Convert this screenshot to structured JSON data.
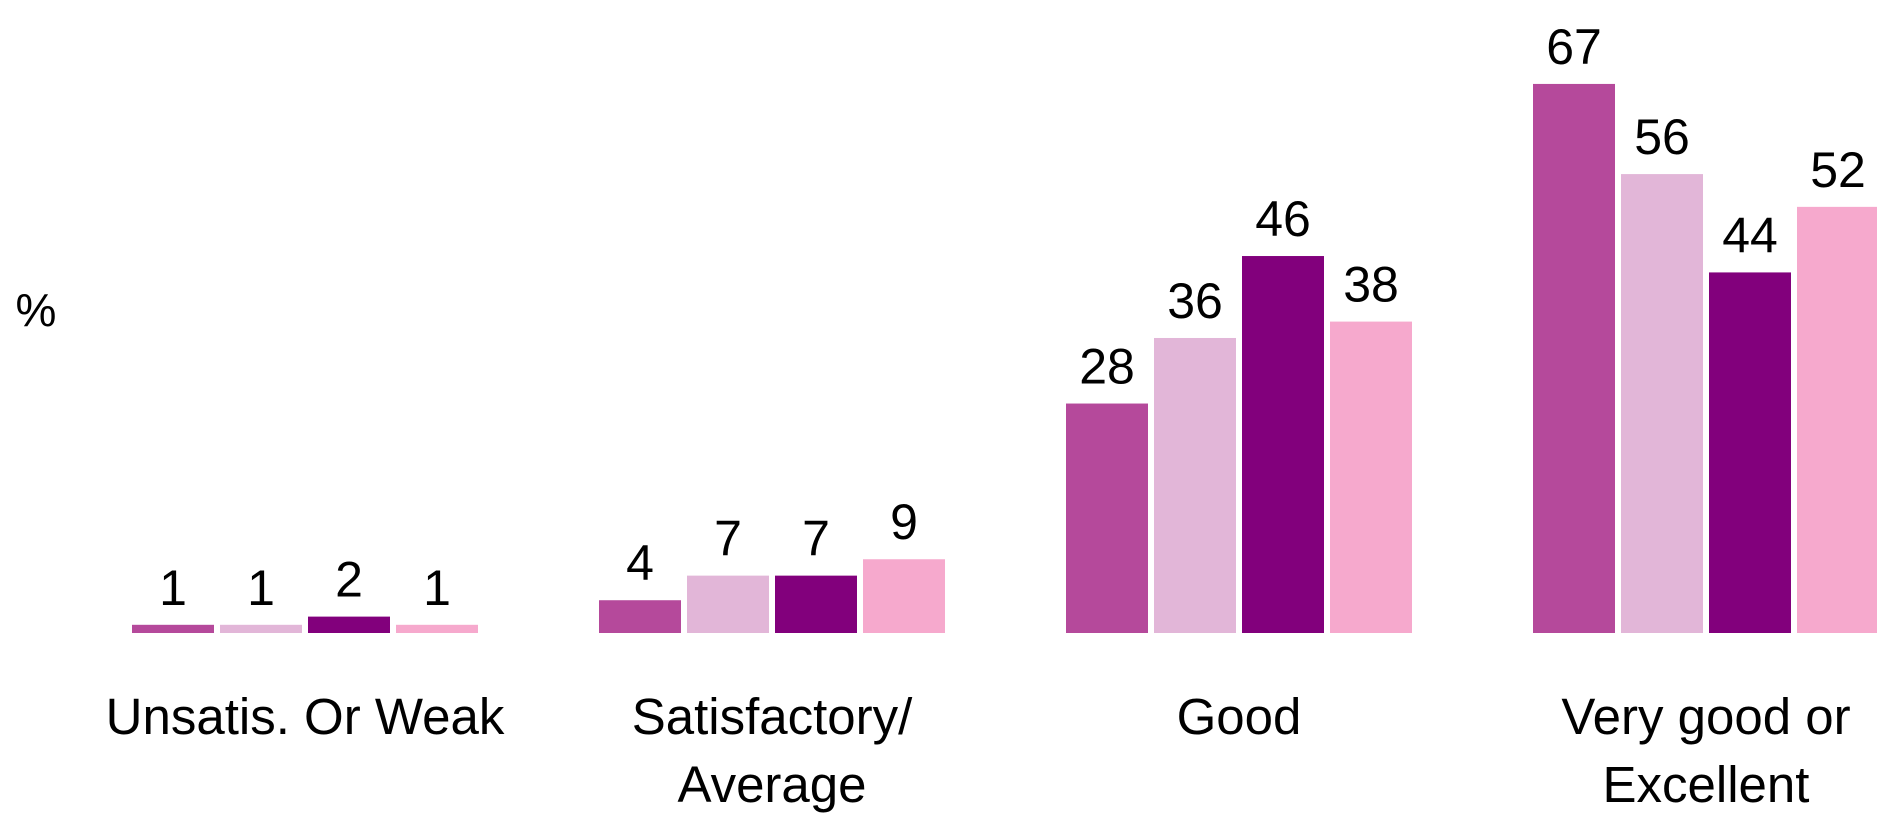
{
  "chart_data": {
    "type": "bar",
    "ylabel": "%",
    "ylim": [
      0,
      70
    ],
    "grid": false,
    "categories": [
      "Unsatis. Or Weak",
      "Satisfactory/ Average",
      "Good",
      "Very good or Excellent"
    ],
    "category_lines": [
      [
        "Unsatis. Or Weak"
      ],
      [
        "Satisfactory/",
        "Average"
      ],
      [
        "Good"
      ],
      [
        "Very good or",
        "Excellent"
      ]
    ],
    "series": [
      {
        "color": "#b5499b",
        "values": [
          1,
          4,
          28,
          67
        ]
      },
      {
        "color": "#e2b6d8",
        "values": [
          1,
          7,
          36,
          56
        ]
      },
      {
        "color": "#82007c",
        "values": [
          2,
          7,
          46,
          44
        ]
      },
      {
        "color": "#f6a9cd",
        "values": [
          1,
          9,
          38,
          52
        ]
      }
    ]
  }
}
